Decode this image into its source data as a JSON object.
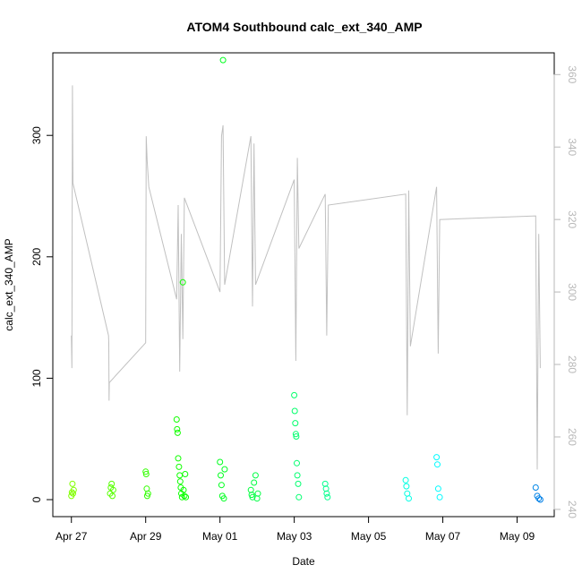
{
  "chart_data": {
    "type": "scatter",
    "title": "ATOM4 Southbound calc_ext_340_AMP",
    "xlabel": "Date",
    "ylabel": "calc_ext_340_AMP",
    "x_range": [
      "2023-04-26T12:00",
      "2023-05-10T00:00"
    ],
    "ylim": [
      -14,
      368
    ],
    "y2lim": [
      238,
      366
    ],
    "x_tick_values": [
      "2023-04-27",
      "2023-04-29",
      "2023-05-01",
      "2023-05-03",
      "2023-05-05",
      "2023-05-07",
      "2023-05-09"
    ],
    "x_tick_labels": [
      "Apr 27",
      "Apr 29",
      "May 01",
      "May 03",
      "May 05",
      "May 07",
      "May 09"
    ],
    "y_ticks": [
      0,
      100,
      200,
      300
    ],
    "y2_ticks": [
      240,
      260,
      280,
      300,
      320,
      340,
      360
    ],
    "grid": false,
    "series": [
      {
        "kind": "points",
        "color_scale": "green-to-blue by date",
        "points": [
          [
            "2023-04-27T00:00",
            3
          ],
          [
            "2023-04-27T00:20",
            6
          ],
          [
            "2023-04-27T00:40",
            13
          ],
          [
            "2023-04-27T01:00",
            5
          ],
          [
            "2023-04-27T01:30",
            8
          ],
          [
            "2023-04-28T01:00",
            5
          ],
          [
            "2023-04-28T01:30",
            10
          ],
          [
            "2023-04-28T02:00",
            13
          ],
          [
            "2023-04-28T02:30",
            3
          ],
          [
            "2023-04-28T03:00",
            8
          ],
          [
            "2023-04-29T00:00",
            23
          ],
          [
            "2023-04-29T00:20",
            21
          ],
          [
            "2023-04-29T00:40",
            9
          ],
          [
            "2023-04-29T01:00",
            3
          ],
          [
            "2023-04-29T01:30",
            5
          ],
          [
            "2023-04-29T20:00",
            66
          ],
          [
            "2023-04-29T20:20",
            58
          ],
          [
            "2023-04-29T20:40",
            55
          ],
          [
            "2023-04-29T21:00",
            34
          ],
          [
            "2023-04-29T21:30",
            27
          ],
          [
            "2023-04-29T22:00",
            20
          ],
          [
            "2023-04-29T22:20",
            15
          ],
          [
            "2023-04-29T22:40",
            10
          ],
          [
            "2023-04-29T23:00",
            5
          ],
          [
            "2023-04-29T23:30",
            2
          ],
          [
            "2023-04-30T00:00",
            179
          ],
          [
            "2023-04-30T00:30",
            8
          ],
          [
            "2023-04-30T01:00",
            3
          ],
          [
            "2023-04-30T01:30",
            21
          ],
          [
            "2023-04-30T02:00",
            2
          ],
          [
            "2023-05-01T00:00",
            31
          ],
          [
            "2023-05-01T00:30",
            20
          ],
          [
            "2023-05-01T01:00",
            12
          ],
          [
            "2023-05-01T01:30",
            3
          ],
          [
            "2023-05-01T02:00",
            362
          ],
          [
            "2023-05-01T02:30",
            1
          ],
          [
            "2023-05-01T03:00",
            25
          ],
          [
            "2023-05-01T20:00",
            8
          ],
          [
            "2023-05-01T20:30",
            4
          ],
          [
            "2023-05-01T21:00",
            2
          ],
          [
            "2023-05-01T22:00",
            14
          ],
          [
            "2023-05-01T23:00",
            20
          ],
          [
            "2023-05-02T00:00",
            1
          ],
          [
            "2023-05-02T00:30",
            5
          ],
          [
            "2023-05-03T00:00",
            86
          ],
          [
            "2023-05-03T00:20",
            73
          ],
          [
            "2023-05-03T00:40",
            63
          ],
          [
            "2023-05-03T01:00",
            54
          ],
          [
            "2023-05-03T01:20",
            52
          ],
          [
            "2023-05-03T01:40",
            30
          ],
          [
            "2023-05-03T02:00",
            20
          ],
          [
            "2023-05-03T02:30",
            13
          ],
          [
            "2023-05-03T03:00",
            2
          ],
          [
            "2023-05-03T20:00",
            13
          ],
          [
            "2023-05-03T20:30",
            9
          ],
          [
            "2023-05-03T21:00",
            5
          ],
          [
            "2023-05-03T21:30",
            2
          ],
          [
            "2023-05-06T00:00",
            16
          ],
          [
            "2023-05-06T00:30",
            11
          ],
          [
            "2023-05-06T01:00",
            5
          ],
          [
            "2023-05-06T02:00",
            1
          ],
          [
            "2023-05-06T20:00",
            35
          ],
          [
            "2023-05-06T20:30",
            29
          ],
          [
            "2023-05-06T21:00",
            9
          ],
          [
            "2023-05-06T22:00",
            2
          ],
          [
            "2023-05-09T12:00",
            10
          ],
          [
            "2023-05-09T13:00",
            3
          ],
          [
            "2023-05-09T14:00",
            1
          ],
          [
            "2023-05-09T15:00",
            0
          ]
        ]
      },
      {
        "kind": "line",
        "color": "#c0c0c0",
        "axis": "right",
        "points": [
          [
            "2023-04-27T00:00",
            288
          ],
          [
            "2023-04-27T00:20",
            279
          ],
          [
            "2023-04-27T00:40",
            357
          ],
          [
            "2023-04-27T01:00",
            330
          ],
          [
            "2023-04-28T00:00",
            288
          ],
          [
            "2023-04-28T00:10",
            286
          ],
          [
            "2023-04-28T00:20",
            270
          ],
          [
            "2023-04-28T00:30",
            275
          ],
          [
            "2023-04-29T00:00",
            286
          ],
          [
            "2023-04-29T00:20",
            343
          ],
          [
            "2023-04-29T01:00",
            336
          ],
          [
            "2023-04-29T02:00",
            329
          ],
          [
            "2023-04-29T20:00",
            298
          ],
          [
            "2023-04-29T21:00",
            324
          ],
          [
            "2023-04-29T22:00",
            278
          ],
          [
            "2023-04-29T23:00",
            316
          ],
          [
            "2023-04-30T00:00",
            287
          ],
          [
            "2023-04-30T01:00",
            326
          ],
          [
            "2023-05-01T00:00",
            300
          ],
          [
            "2023-05-01T01:00",
            343
          ],
          [
            "2023-05-01T02:00",
            346
          ],
          [
            "2023-05-01T03:00",
            302
          ],
          [
            "2023-05-01T20:00",
            343
          ],
          [
            "2023-05-01T21:00",
            296
          ],
          [
            "2023-05-01T22:00",
            341
          ],
          [
            "2023-05-01T23:00",
            302
          ],
          [
            "2023-05-03T00:00",
            331
          ],
          [
            "2023-05-03T01:00",
            281
          ],
          [
            "2023-05-03T02:00",
            337
          ],
          [
            "2023-05-03T03:00",
            312
          ],
          [
            "2023-05-03T20:00",
            327
          ],
          [
            "2023-05-03T21:00",
            288
          ],
          [
            "2023-05-03T22:00",
            324
          ],
          [
            "2023-05-06T00:00",
            327
          ],
          [
            "2023-05-06T01:00",
            266
          ],
          [
            "2023-05-06T02:00",
            328
          ],
          [
            "2023-05-06T03:00",
            285
          ],
          [
            "2023-05-06T20:00",
            329
          ],
          [
            "2023-05-06T21:00",
            283
          ],
          [
            "2023-05-06T22:00",
            320
          ],
          [
            "2023-05-09T12:00",
            321
          ],
          [
            "2023-05-09T13:00",
            251
          ],
          [
            "2023-05-09T14:00",
            316
          ],
          [
            "2023-05-09T15:00",
            279
          ]
        ]
      }
    ]
  }
}
